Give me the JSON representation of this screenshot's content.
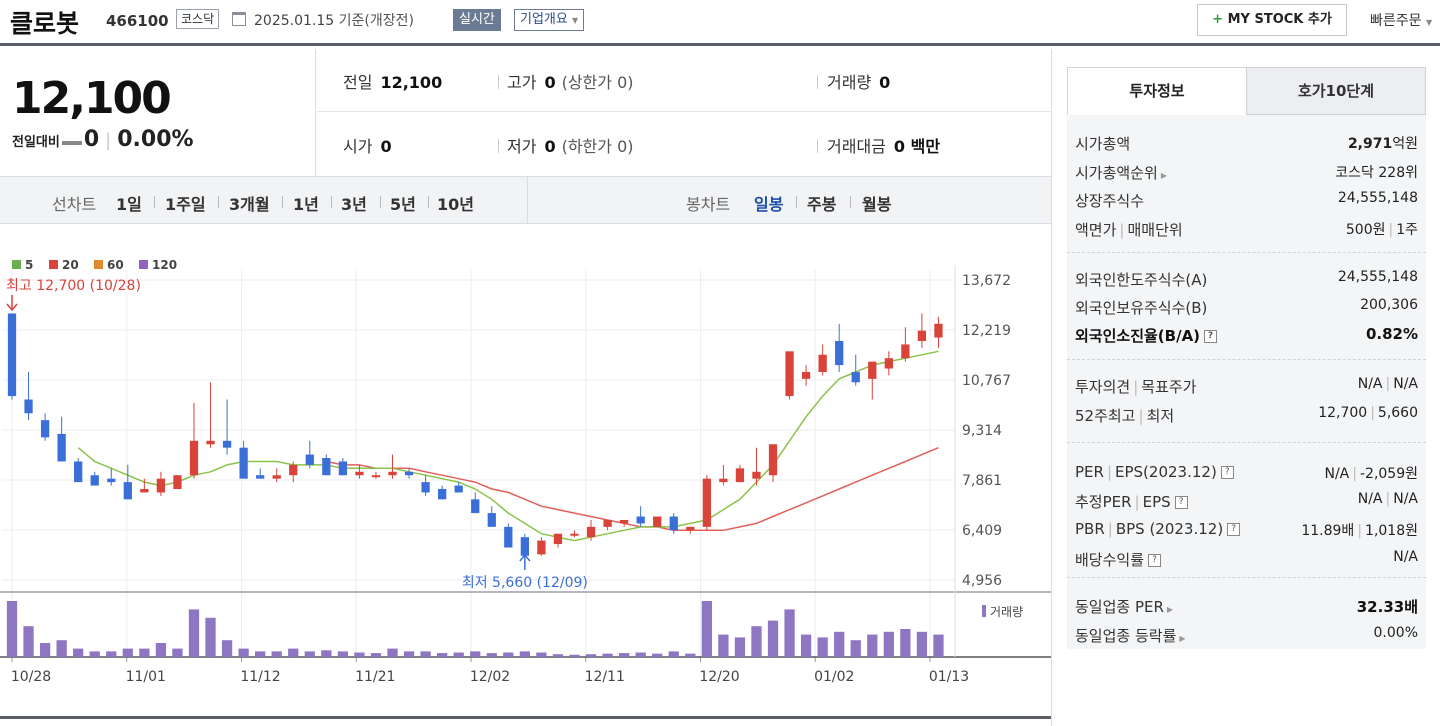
{
  "header": {
    "name": "클로봇",
    "code": "466100",
    "market": "코스닥",
    "date": "2025.01.15",
    "date_suffix": "기준(개장전)",
    "realtime": "실시간",
    "overview": "기업개요",
    "mystock": "MY STOCK 추가",
    "quick_order": "빠른주문"
  },
  "price": {
    "current": "12,100",
    "change_label": "전일대비",
    "change": "0",
    "change_rate": "0.00%"
  },
  "quotes": {
    "prev_label": "전일",
    "prev": "12,100",
    "high_label": "고가",
    "high": "0",
    "upper_limit": "(상한가 0)",
    "volume_label": "거래량",
    "volume": "0",
    "open_label": "시가",
    "open": "0",
    "low_label": "저가",
    "low": "0",
    "lower_limit": "(하한가 0)",
    "amount_label": "거래대금",
    "amount": "0 백만"
  },
  "toolbar": {
    "line_chart": "선차트",
    "periods": [
      "1일",
      "1주일",
      "3개월",
      "1년",
      "3년",
      "5년",
      "10년"
    ],
    "candle_chart": "봉차트",
    "candle_periods": [
      "일봉",
      "주봉",
      "월봉"
    ],
    "selected_candle": "일봉"
  },
  "chart_data": {
    "type": "candlestick",
    "legend": [
      {
        "name": "5",
        "color": "#6ab04c"
      },
      {
        "name": "20",
        "color": "#d9433a"
      },
      {
        "name": "60",
        "color": "#e08a2e"
      },
      {
        "name": "120",
        "color": "#8e63c2"
      }
    ],
    "y_ticks": [
      "13,672",
      "12,219",
      "10,767",
      "9,314",
      "7,861",
      "6,409",
      "4,956"
    ],
    "ylim": [
      4956,
      13672
    ],
    "x_ticks": [
      "10/28",
      "11/01",
      "11/12",
      "11/21",
      "12/02",
      "12/11",
      "12/20",
      "01/02",
      "01/13"
    ],
    "high_annotation": "최고 12,700 (10/28)",
    "low_annotation": "최저 5,660 (12/09)",
    "volume_label": "거래량",
    "up_color": "#d9433a",
    "down_color": "#3b6fd8",
    "candles": [
      [
        12700,
        12500,
        10300,
        10200,
        1.0
      ],
      [
        10200,
        11000,
        9800,
        9600,
        0.55
      ],
      [
        9600,
        9800,
        9100,
        9000,
        0.25
      ],
      [
        9200,
        9700,
        8400,
        8400,
        0.3
      ],
      [
        8400,
        8500,
        7800,
        7800,
        0.15
      ],
      [
        8000,
        8100,
        7700,
        7700,
        0.1
      ],
      [
        7900,
        8200,
        7800,
        7700,
        0.1
      ],
      [
        7800,
        8300,
        7300,
        7300,
        0.15
      ],
      [
        7500,
        7900,
        7600,
        7500,
        0.15
      ],
      [
        7500,
        8100,
        7900,
        7400,
        0.25
      ],
      [
        7600,
        8000,
        8000,
        7600,
        0.15
      ],
      [
        8000,
        10100,
        9000,
        7900,
        0.85
      ],
      [
        8900,
        10700,
        9000,
        8800,
        0.7
      ],
      [
        9000,
        10200,
        8800,
        8600,
        0.3
      ],
      [
        8800,
        9000,
        7900,
        7900,
        0.15
      ],
      [
        8000,
        8200,
        7900,
        7900,
        0.1
      ],
      [
        7900,
        8200,
        8000,
        7800,
        0.1
      ],
      [
        8000,
        8400,
        8300,
        7800,
        0.15
      ],
      [
        8600,
        9000,
        8300,
        8200,
        0.1
      ],
      [
        8500,
        8600,
        8000,
        8000,
        0.12
      ],
      [
        8400,
        8500,
        8000,
        8000,
        0.1
      ],
      [
        8000,
        8300,
        8100,
        7900,
        0.08
      ],
      [
        8000,
        8100,
        8000,
        7900,
        0.07
      ],
      [
        8000,
        8600,
        8100,
        7900,
        0.15
      ],
      [
        8100,
        8200,
        8000,
        7900,
        0.1
      ],
      [
        7800,
        8000,
        7500,
        7400,
        0.1
      ],
      [
        7600,
        7700,
        7300,
        7300,
        0.07
      ],
      [
        7700,
        7800,
        7500,
        7500,
        0.08
      ],
      [
        7300,
        7500,
        6900,
        6900,
        0.1
      ],
      [
        6900,
        7100,
        6500,
        6500,
        0.07
      ],
      [
        6500,
        6600,
        5900,
        5900,
        0.08
      ],
      [
        6200,
        6300,
        5660,
        5700,
        0.1
      ],
      [
        5700,
        6200,
        6100,
        5660,
        0.08
      ],
      [
        6000,
        6300,
        6300,
        5900,
        0.05
      ],
      [
        6300,
        6400,
        6300,
        6200,
        0.04
      ],
      [
        6200,
        6700,
        6500,
        6100,
        0.05
      ],
      [
        6500,
        6700,
        6700,
        6400,
        0.06
      ],
      [
        6600,
        6700,
        6700,
        6500,
        0.07
      ],
      [
        6800,
        7100,
        6600,
        6500,
        0.08
      ],
      [
        6500,
        6800,
        6800,
        6500,
        0.06
      ],
      [
        6800,
        6900,
        6400,
        6300,
        0.1
      ],
      [
        6400,
        6500,
        6500,
        6300,
        0.06
      ],
      [
        6500,
        8000,
        7900,
        6400,
        1.0
      ],
      [
        7800,
        8300,
        7900,
        7700,
        0.4
      ],
      [
        7800,
        8300,
        8200,
        7800,
        0.35
      ],
      [
        7900,
        8800,
        8100,
        7700,
        0.55
      ],
      [
        8000,
        8800,
        8900,
        7800,
        0.65
      ],
      [
        10300,
        11500,
        11600,
        10200,
        0.85
      ],
      [
        10800,
        11200,
        11000,
        10600,
        0.4
      ],
      [
        11000,
        11800,
        11500,
        10900,
        0.35
      ],
      [
        11900,
        12400,
        11200,
        11000,
        0.45
      ],
      [
        11000,
        11500,
        10700,
        10600,
        0.3
      ],
      [
        10800,
        11300,
        11300,
        10200,
        0.4
      ],
      [
        11100,
        11600,
        11400,
        10900,
        0.45
      ],
      [
        11400,
        12300,
        11800,
        11300,
        0.5
      ],
      [
        11900,
        12700,
        12200,
        11700,
        0.45
      ],
      [
        12000,
        12600,
        12400,
        11700,
        0.4
      ]
    ],
    "ma5": [
      null,
      null,
      null,
      null,
      8800,
      8400,
      8200,
      8000,
      7800,
      7700,
      7800,
      8000,
      8100,
      8300,
      8400,
      8400,
      8400,
      8300,
      8300,
      8300,
      8200,
      8200,
      8200,
      8200,
      8100,
      8000,
      7900,
      7800,
      7600,
      7300,
      6900,
      6600,
      6300,
      6200,
      6100,
      6200,
      6300,
      6400,
      6500,
      6500,
      6500,
      6600,
      6700,
      7000,
      7300,
      7800,
      8300,
      9000,
      9700,
      10300,
      10800,
      11000,
      11200,
      11300,
      11400,
      11500,
      11600
    ],
    "ma20": [
      null,
      null,
      null,
      null,
      null,
      null,
      null,
      null,
      null,
      null,
      null,
      null,
      null,
      null,
      null,
      null,
      null,
      null,
      null,
      8400,
      8300,
      8300,
      8200,
      8200,
      8200,
      8100,
      8000,
      7900,
      7800,
      7600,
      7500,
      7300,
      7100,
      7000,
      6900,
      6800,
      6700,
      6600,
      6500,
      6500,
      6400,
      6400,
      6400,
      6400,
      6500,
      6600,
      6800,
      7000,
      7200,
      7400,
      7600,
      7800,
      8000,
      8200,
      8400,
      8600,
      8800
    ]
  },
  "panel": {
    "tab_active": "투자정보",
    "tab_inactive": "호가10단계",
    "market_cap_label": "시가총액",
    "market_cap": "2,971",
    "market_cap_unit": "억원",
    "market_cap_rank_label": "시가총액순위",
    "market_cap_rank": "코스닥 228위",
    "shares_label": "상장주식수",
    "shares": "24,555,148",
    "par_label": "액면가",
    "unit_label": "매매단위",
    "par": "500원",
    "unit": "1주",
    "foreign_limit_label": "외국인한도주식수(A)",
    "foreign_limit": "24,555,148",
    "foreign_hold_label": "외국인보유주식수(B)",
    "foreign_hold": "200,306",
    "foreign_ratio_label": "외국인소진율(B/A)",
    "foreign_ratio": "0.82%",
    "opinion_label": "투자의견",
    "target_label": "목표주가",
    "opinion": "N/A",
    "target": "N/A",
    "w52_high_label": "52주최고",
    "w52_low_label": "최저",
    "w52_high": "12,700",
    "w52_low": "5,660",
    "per_label": "PER",
    "eps_label": "EPS(2023.12)",
    "per": "N/A",
    "eps": "-2,059원",
    "est_per_label": "추정PER",
    "est_eps_label": "EPS",
    "est_per": "N/A",
    "est_eps": "N/A",
    "pbr_label": "PBR",
    "bps_label": "BPS (2023.12)",
    "pbr": "11.89배",
    "bps": "1,018원",
    "div_label": "배당수익률",
    "div": "N/A",
    "sector_per_label": "동일업종 PER",
    "sector_per": "32.33배",
    "sector_chg_label": "동일업종 등락률",
    "sector_chg": "0.00%"
  }
}
